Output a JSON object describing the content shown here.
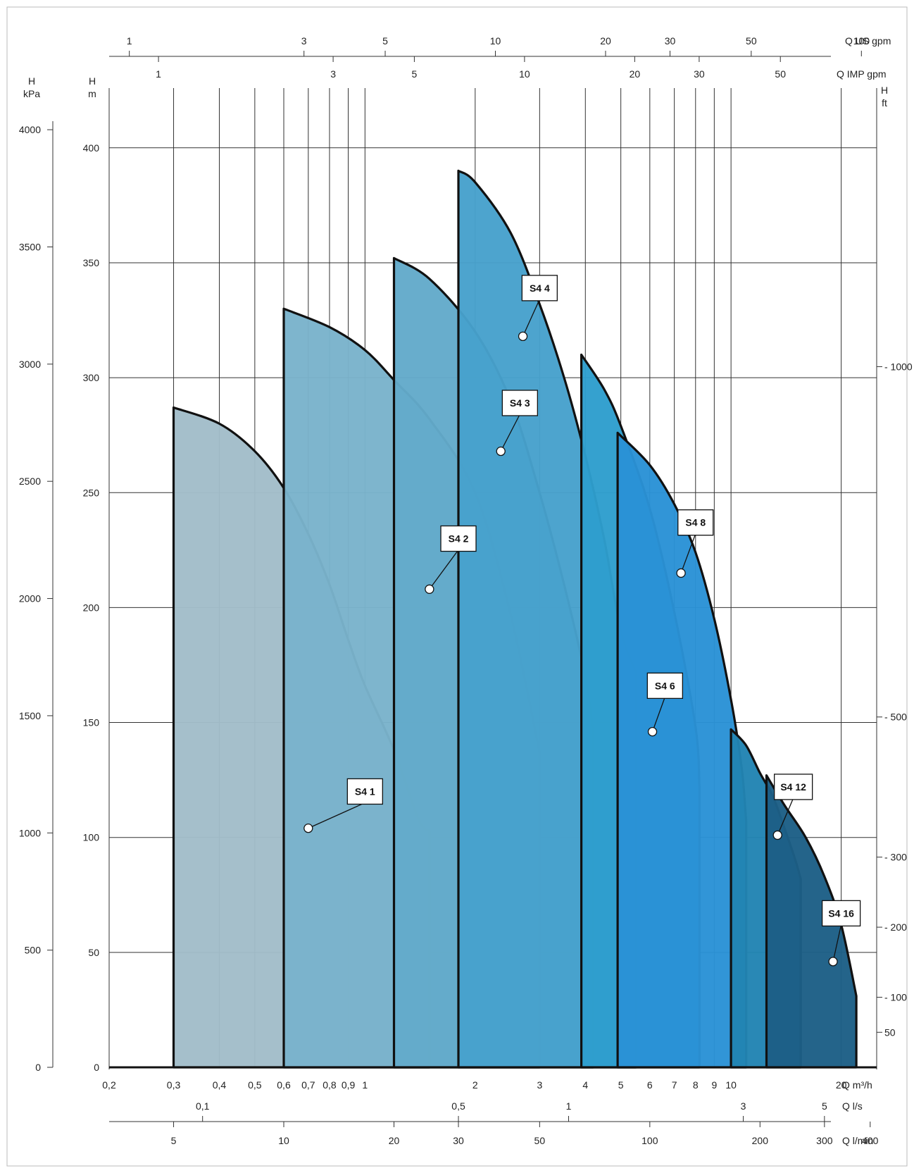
{
  "chart_data": {
    "type": "area",
    "title": "",
    "x_scale": "log",
    "x_range_m3h": [
      0.2,
      25
    ],
    "y_range_m": [
      0,
      420
    ],
    "grid": true,
    "bottom_axes": [
      {
        "unit": "Q m³/h",
        "ticks": [
          {
            "v": 0.2,
            "t": "0,2"
          },
          {
            "v": 0.3,
            "t": "0,3"
          },
          {
            "v": 0.4,
            "t": "0,4"
          },
          {
            "v": 0.5,
            "t": "0,5"
          },
          {
            "v": 0.6,
            "t": "0,6"
          },
          {
            "v": 0.7,
            "t": "0,7"
          },
          {
            "v": 0.8,
            "t": "0,8"
          },
          {
            "v": 0.9,
            "t": "0,9"
          },
          {
            "v": 1,
            "t": "1"
          },
          {
            "v": 2,
            "t": "2"
          },
          {
            "v": 3,
            "t": "3"
          },
          {
            "v": 4,
            "t": "4"
          },
          {
            "v": 5,
            "t": "5"
          },
          {
            "v": 6,
            "t": "6"
          },
          {
            "v": 7,
            "t": "7"
          },
          {
            "v": 8,
            "t": "8"
          },
          {
            "v": 9,
            "t": "9"
          },
          {
            "v": 10,
            "t": "10"
          },
          {
            "v": 20,
            "t": "20"
          }
        ]
      },
      {
        "unit": "Q l/s",
        "ticks": [
          {
            "v": 0.1,
            "t": "0,1"
          },
          {
            "v": 0.5,
            "t": "0,5"
          },
          {
            "v": 1,
            "t": "1"
          },
          {
            "v": 3,
            "t": "3"
          },
          {
            "v": 5,
            "t": "5"
          }
        ]
      },
      {
        "unit": "Q l/min",
        "ticks": [
          {
            "v": 5,
            "t": "5"
          },
          {
            "v": 10,
            "t": "10"
          },
          {
            "v": 20,
            "t": "20"
          },
          {
            "v": 30,
            "t": "30"
          },
          {
            "v": 50,
            "t": "50"
          },
          {
            "v": 100,
            "t": "100"
          },
          {
            "v": 200,
            "t": "200"
          },
          {
            "v": 300,
            "t": "300"
          },
          {
            "v": 400,
            "t": "400"
          }
        ]
      }
    ],
    "top_axes": [
      {
        "unit": "Q US gpm",
        "ticks": [
          {
            "v": 1,
            "t": "1"
          },
          {
            "v": 3,
            "t": "3"
          },
          {
            "v": 5,
            "t": "5"
          },
          {
            "v": 10,
            "t": "10"
          },
          {
            "v": 20,
            "t": "20"
          },
          {
            "v": 30,
            "t": "30"
          },
          {
            "v": 50,
            "t": "50"
          },
          {
            "v": 100,
            "t": "100"
          }
        ]
      },
      {
        "unit": "Q IMP gpm",
        "ticks": [
          {
            "v": 1,
            "t": "1"
          },
          {
            "v": 3,
            "t": "3"
          },
          {
            "v": 5,
            "t": "5"
          },
          {
            "v": 10,
            "t": "10"
          },
          {
            "v": 20,
            "t": "20"
          },
          {
            "v": 30,
            "t": "30"
          },
          {
            "v": 50,
            "t": "50"
          }
        ]
      }
    ],
    "left_axes": [
      {
        "unit_top": "H",
        "unit_bottom": "kPa",
        "ticks": [
          0,
          500,
          1000,
          1500,
          2000,
          2500,
          3000,
          3500,
          4000
        ]
      },
      {
        "unit_top": "H",
        "unit_bottom": "m",
        "ticks": [
          0,
          50,
          100,
          150,
          200,
          250,
          300,
          350,
          400
        ]
      }
    ],
    "right_axis": {
      "unit_top": "H",
      "unit_bottom": "ft",
      "ticks": [
        50,
        100,
        200,
        300,
        500,
        1000
      ]
    },
    "series": [
      {
        "name": "S4 1",
        "color": "#a2bdc9",
        "q_min": 0.3,
        "q_max": 1.5,
        "curve": [
          [
            0.3,
            287
          ],
          [
            0.4,
            280
          ],
          [
            0.5,
            268
          ],
          [
            0.6,
            252
          ],
          [
            0.7,
            232
          ],
          [
            0.8,
            210
          ],
          [
            0.9,
            186
          ],
          [
            1.0,
            166
          ],
          [
            1.2,
            138
          ],
          [
            1.4,
            108
          ],
          [
            1.5,
            103
          ]
        ],
        "marker": [
          0.7,
          104
        ],
        "callout": [
          1.0,
          120
        ]
      },
      {
        "name": "S4 2",
        "color": "#7ab3cb",
        "q_min": 0.6,
        "q_max": 3.0,
        "curve": [
          [
            0.6,
            330
          ],
          [
            0.8,
            322
          ],
          [
            1.0,
            312
          ],
          [
            1.2,
            299
          ],
          [
            1.5,
            282
          ],
          [
            2.0,
            250
          ],
          [
            2.5,
            197
          ],
          [
            3.0,
            137
          ]
        ],
        "marker": [
          1.5,
          208
        ],
        "callout": [
          1.8,
          230
        ]
      },
      {
        "name": "S4 3",
        "color": "#63aaca",
        "q_min": 1.2,
        "q_max": 4.2,
        "curve": [
          [
            1.2,
            352
          ],
          [
            1.5,
            343
          ],
          [
            2.0,
            320
          ],
          [
            2.5,
            290
          ],
          [
            3.0,
            250
          ],
          [
            3.5,
            210
          ],
          [
            4.0,
            170
          ],
          [
            4.2,
            147
          ]
        ],
        "marker": [
          2.35,
          268
        ],
        "callout": [
          2.65,
          289
        ]
      },
      {
        "name": "S4 4",
        "color": "#47a1cc",
        "q_min": 1.8,
        "q_max": 5.5,
        "curve": [
          [
            1.8,
            390
          ],
          [
            2.0,
            385
          ],
          [
            2.5,
            363
          ],
          [
            3.0,
            332
          ],
          [
            3.5,
            300
          ],
          [
            4.0,
            266
          ],
          [
            4.5,
            230
          ],
          [
            5.0,
            190
          ],
          [
            5.5,
            172
          ]
        ],
        "marker": [
          2.7,
          318
        ],
        "callout": [
          3.0,
          339
        ]
      },
      {
        "name": "S4 6",
        "color": "#2e9ecd",
        "q_min": 3.9,
        "q_max": 8.2,
        "curve": [
          [
            3.9,
            310
          ],
          [
            4.5,
            295
          ],
          [
            5.0,
            279
          ],
          [
            6.0,
            243
          ],
          [
            7.0,
            198
          ],
          [
            8.0,
            148
          ],
          [
            8.2,
            122
          ]
        ],
        "marker": [
          6.1,
          146
        ],
        "callout": [
          6.6,
          166
        ]
      },
      {
        "name": "S4 8",
        "color": "#2a92d6",
        "q_min": 4.9,
        "q_max": 11,
        "curve": [
          [
            4.9,
            276
          ],
          [
            6.0,
            262
          ],
          [
            7.0,
            245
          ],
          [
            8.0,
            224
          ],
          [
            9.0,
            195
          ],
          [
            10.0,
            160
          ],
          [
            10.7,
            130
          ],
          [
            11.0,
            107
          ]
        ],
        "marker": [
          7.3,
          215
        ],
        "callout": [
          8.0,
          237
        ]
      },
      {
        "name": "S4 12",
        "color": "#2284b3",
        "q_min": 10,
        "q_max": 15.5,
        "curve": [
          [
            10.0,
            147
          ],
          [
            11.0,
            140
          ],
          [
            12.0,
            128
          ],
          [
            13.0,
            118
          ],
          [
            14.0,
            104
          ],
          [
            15.0,
            90
          ],
          [
            15.5,
            82
          ]
        ],
        "marker": [
          13.4,
          101
        ],
        "callout": [
          14.8,
          122
        ]
      },
      {
        "name": "S4 16",
        "color": "#1d5f86",
        "q_min": 12.5,
        "q_max": 22,
        "curve": [
          [
            12.5,
            127
          ],
          [
            14.0,
            114
          ],
          [
            16.0,
            100
          ],
          [
            18.0,
            83
          ],
          [
            20.0,
            62
          ],
          [
            22.0,
            31
          ]
        ],
        "marker": [
          19.0,
          46
        ],
        "callout": [
          20.0,
          67
        ]
      }
    ]
  }
}
